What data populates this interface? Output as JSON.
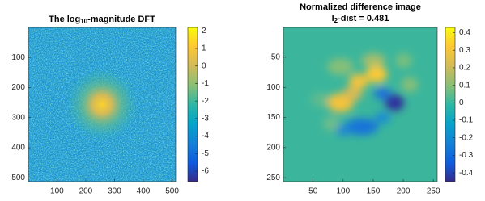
{
  "chart_data": [
    {
      "type": "image",
      "title": [
        [
          {
            "text": "The log"
          },
          {
            "text": "10",
            "sub": true
          },
          {
            "text": "-magnitude DFT"
          }
        ]
      ],
      "xlim": [
        0.5,
        512.5
      ],
      "xticks": [
        100,
        200,
        300,
        400,
        500
      ],
      "ylim": [
        0.5,
        512.5
      ],
      "yticks": [
        100,
        200,
        300,
        400,
        500
      ],
      "y_reversed": true,
      "clim": [
        -6.6,
        2.2
      ],
      "cticks": [
        -6,
        -5,
        -4,
        -3,
        -2,
        -1,
        0,
        1,
        2
      ]
    },
    {
      "type": "image",
      "title": [
        [
          {
            "text": "Normalized difference image"
          }
        ],
        [
          {
            "text": "l"
          },
          {
            "text": "2",
            "sub": true
          },
          {
            "text": "-dist = 0.481"
          }
        ]
      ],
      "xlim": [
        0.5,
        256.5
      ],
      "xticks": [
        50,
        100,
        150,
        200,
        250
      ],
      "ylim": [
        0.5,
        256.5
      ],
      "yticks": [
        50,
        100,
        150,
        200,
        250
      ],
      "y_reversed": true,
      "clim": [
        -0.45,
        0.43
      ],
      "cticks": [
        -0.4,
        -0.3,
        -0.2,
        -0.1,
        0,
        0.1,
        0.2,
        0.3,
        0.4
      ]
    }
  ]
}
